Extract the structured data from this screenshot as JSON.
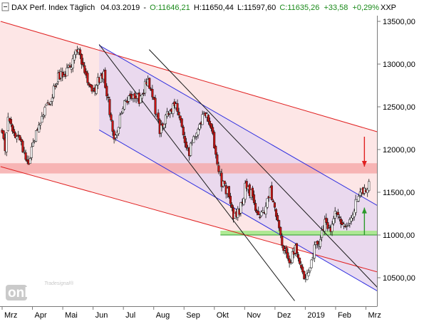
{
  "header": {
    "instrument": "DAX Perf. Index Täglich",
    "date": "04.03.2019",
    "open": "O:11646,21",
    "high": "H:11650,44",
    "low": "L:11597,60",
    "close": "C:11635,26",
    "change": "+33,58",
    "change_pct": "+0,29%",
    "currency": "XXP"
  },
  "watermark": {
    "brand_small": "Tradesignal®",
    "brand_big": "online"
  },
  "colors": {
    "up": "#1a8a1a",
    "red_channel_fill": "#fde6e6",
    "red_channel_line": "#e02020",
    "blue_channel_fill": "#e6d6ee",
    "blue_channel_line": "#3030e0",
    "resistance_band": "#f5a8a8",
    "support_band": "#a6e88a",
    "candle_bull": "#ffffff",
    "candle_bear": "#c81414",
    "arrow_red": "#e02020",
    "arrow_green": "#2a9a2a",
    "trend_black": "#1a1a1a"
  },
  "chart_data": {
    "type": "candlestick",
    "title": "DAX Perf. Index Täglich",
    "x_ticks": [
      "Mrz",
      "Apr",
      "Mai",
      "Jun",
      "Jul",
      "Aug",
      "Sep",
      "Okt",
      "Nov",
      "Dez",
      "2019",
      "Feb",
      "Mrz"
    ],
    "y_ticks": [
      "13500,00",
      "13000,00",
      "12500,00",
      "12000,00",
      "11500,00",
      "11000,00",
      "10500,00"
    ],
    "y_tick_values": [
      13500,
      13000,
      12500,
      12000,
      11500,
      11000,
      10500
    ],
    "ylim": [
      10200,
      13700
    ],
    "x_range_months": [
      0,
      12.45
    ],
    "price_path": [
      [
        0,
        12250
      ],
      [
        0.1,
        11960
      ],
      [
        0.2,
        12380
      ],
      [
        0.4,
        12200
      ],
      [
        0.6,
        12100
      ],
      [
        0.85,
        11820
      ],
      [
        1.0,
        12050
      ],
      [
        1.3,
        12350
      ],
      [
        1.6,
        12600
      ],
      [
        1.85,
        12850
      ],
      [
        2.1,
        12900
      ],
      [
        2.3,
        13020
      ],
      [
        2.5,
        13170
      ],
      [
        2.7,
        12900
      ],
      [
        2.9,
        12770
      ],
      [
        3.0,
        12650
      ],
      [
        3.15,
        12810
      ],
      [
        3.35,
        12880
      ],
      [
        3.55,
        12450
      ],
      [
        3.7,
        12130
      ],
      [
        3.9,
        12380
      ],
      [
        4.05,
        12550
      ],
      [
        4.3,
        12650
      ],
      [
        4.55,
        12580
      ],
      [
        4.8,
        12850
      ],
      [
        5.0,
        12550
      ],
      [
        5.2,
        12230
      ],
      [
        5.45,
        12400
      ],
      [
        5.7,
        12550
      ],
      [
        5.95,
        12200
      ],
      [
        6.15,
        11960
      ],
      [
        6.35,
        12150
      ],
      [
        6.55,
        12340
      ],
      [
        6.75,
        12450
      ],
      [
        6.9,
        12240
      ],
      [
        7.05,
        11950
      ],
      [
        7.25,
        11600
      ],
      [
        7.45,
        11500
      ],
      [
        7.65,
        11200
      ],
      [
        7.85,
        11300
      ],
      [
        8.05,
        11600
      ],
      [
        8.25,
        11450
      ],
      [
        8.45,
        11200
      ],
      [
        8.65,
        11300
      ],
      [
        8.85,
        11520
      ],
      [
        9.05,
        11200
      ],
      [
        9.25,
        10900
      ],
      [
        9.45,
        10650
      ],
      [
        9.65,
        10850
      ],
      [
        9.8,
        10750
      ],
      [
        9.95,
        10450
      ],
      [
        10.1,
        10600
      ],
      [
        10.3,
        10850
      ],
      [
        10.5,
        10950
      ],
      [
        10.65,
        11150
      ],
      [
        10.8,
        11050
      ],
      [
        11.0,
        11250
      ],
      [
        11.2,
        11150
      ],
      [
        11.35,
        11050
      ],
      [
        11.55,
        11250
      ],
      [
        11.75,
        11450
      ],
      [
        11.95,
        11520
      ],
      [
        12.1,
        11620
      ]
    ],
    "red_channel": {
      "upper": [
        [
          -0.05,
          13500
        ],
        [
          12.45,
          12200
        ]
      ],
      "lower": [
        [
          -0.05,
          11800
        ],
        [
          12.45,
          10560
        ]
      ]
    },
    "blue_channel": {
      "upper": [
        [
          3.2,
          13220
        ],
        [
          12.45,
          11330
        ]
      ],
      "lower": [
        [
          3.2,
          12230
        ],
        [
          12.45,
          10330
        ]
      ]
    },
    "black_trendlines": [
      {
        "from": [
          3.2,
          13230
        ],
        "to": [
          9.65,
          10230
        ]
      },
      {
        "from": [
          4.85,
          13170
        ],
        "to": [
          12.45,
          10360
        ]
      }
    ],
    "resistance_band": [
      11720,
      11840
    ],
    "support_band": [
      11000,
      11050
    ],
    "arrows": [
      {
        "color": "red",
        "direction": "down",
        "x": 11.95,
        "from": 12150,
        "to": 11800
      },
      {
        "color": "green",
        "direction": "up",
        "x": 11.95,
        "from": 11000,
        "to": 11320
      }
    ],
    "grid": false,
    "legend": "none"
  }
}
